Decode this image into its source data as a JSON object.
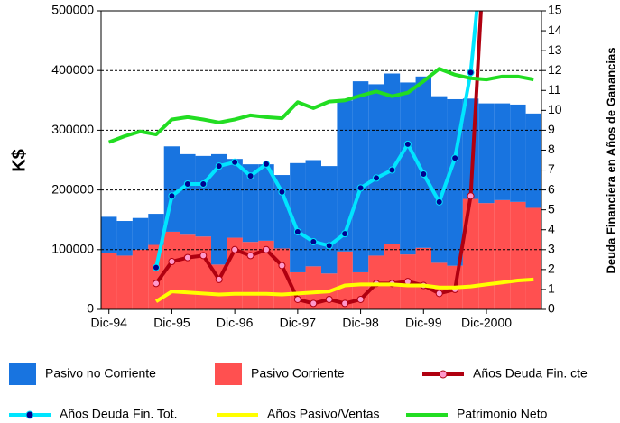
{
  "chart_data": {
    "type": "bar",
    "y_label": "K$",
    "y2_label": "Deuda Financiera en Años de Ganancias",
    "categories": [
      "Dic-94",
      null,
      null,
      null,
      "Dic-95",
      null,
      null,
      null,
      "Dic-96",
      null,
      null,
      null,
      "Dic-97",
      null,
      null,
      null,
      "Dic-98",
      null,
      null,
      null,
      "Dic-99",
      null,
      null,
      null,
      "Dic-2000",
      null,
      null,
      null
    ],
    "ylim": [
      0,
      500000
    ],
    "yticks": [
      0,
      100000,
      200000,
      300000,
      400000,
      500000
    ],
    "y2lim": [
      0,
      15
    ],
    "y2ticks": [
      0,
      1,
      2,
      3,
      4,
      5,
      6,
      7,
      8,
      9,
      10,
      11,
      12,
      13,
      14,
      15
    ],
    "grid": true,
    "series": [
      {
        "name": "Pasivo no Corriente",
        "kind": "bar",
        "color": "#1874e0",
        "values": [
          60000,
          58000,
          53000,
          52000,
          143000,
          135000,
          135000,
          185000,
          132000,
          130000,
          128000,
          123000,
          183000,
          178000,
          180000,
          253000,
          320000,
          287000,
          285000,
          288000,
          287000,
          279000,
          279000,
          168000,
          167000,
          162000,
          163000,
          158000
        ]
      },
      {
        "name": "Pasivo Corriente",
        "kind": "bar",
        "color": "#ff5050",
        "values": [
          95000,
          90000,
          100000,
          108000,
          130000,
          125000,
          122000,
          75000,
          120000,
          113000,
          115000,
          102000,
          62000,
          72000,
          60000,
          97000,
          62000,
          90000,
          110000,
          92000,
          103000,
          78000,
          73000,
          185000,
          178000,
          183000,
          180000,
          170000
        ]
      },
      {
        "name": "Años Deuda Fin. cte",
        "kind": "line",
        "axis": "y2",
        "color": "#b00010",
        "marker_color": "#ff99cc",
        "values": [
          null,
          null,
          null,
          1.3,
          2.4,
          2.6,
          2.7,
          1.5,
          3.0,
          2.7,
          3.0,
          2.2,
          0.5,
          0.3,
          0.5,
          0.3,
          0.5,
          1.3,
          1.3,
          1.4,
          1.2,
          0.8,
          1.0,
          5.7,
          20,
          null,
          null,
          null
        ]
      },
      {
        "name": "Años Deuda Fin. Tot.",
        "kind": "line",
        "axis": "y2",
        "color": "#00e5ff",
        "marker_color": "#000090",
        "values": [
          null,
          null,
          null,
          2.1,
          5.7,
          6.3,
          6.3,
          7.2,
          7.4,
          6.7,
          7.3,
          5.9,
          3.9,
          3.4,
          3.2,
          3.8,
          6.1,
          6.6,
          7.0,
          8.3,
          6.8,
          5.4,
          7.6,
          11.9,
          20,
          null,
          null,
          null
        ]
      },
      {
        "name": "Años Pasivo/Ventas",
        "kind": "line",
        "axis": "y2",
        "color": "#ffff00",
        "values": [
          null,
          null,
          null,
          0.4,
          0.9,
          0.85,
          0.8,
          0.75,
          0.78,
          0.78,
          0.78,
          0.75,
          0.8,
          0.85,
          0.9,
          1.2,
          1.25,
          1.25,
          1.25,
          1.2,
          1.2,
          1.1,
          1.1,
          1.15,
          1.25,
          1.35,
          1.45,
          1.5
        ]
      },
      {
        "name": "Patrimonio Neto",
        "kind": "line",
        "color": "#22dd22",
        "values": [
          280000,
          290000,
          298000,
          293000,
          318000,
          322000,
          318000,
          313000,
          318000,
          325000,
          322000,
          320000,
          347000,
          337000,
          348000,
          350000,
          358000,
          365000,
          357000,
          363000,
          382000,
          403000,
          393000,
          387000,
          385000,
          390000,
          390000,
          385000
        ]
      }
    ]
  }
}
